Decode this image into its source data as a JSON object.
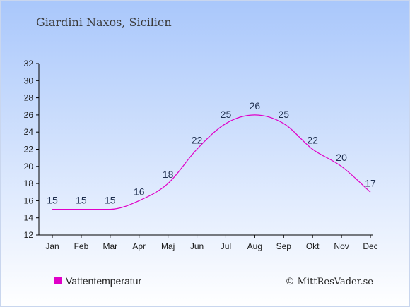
{
  "chart_data": {
    "type": "line",
    "title": "Giardini Naxos, Sicilien",
    "categories": [
      "Jan",
      "Feb",
      "Mar",
      "Apr",
      "Maj",
      "Jun",
      "Jul",
      "Aug",
      "Sep",
      "Okt",
      "Nov",
      "Dec"
    ],
    "series": [
      {
        "name": "Vattentemperatur",
        "values": [
          15,
          15,
          15,
          16,
          18,
          22,
          25,
          26,
          25,
          22,
          20,
          17
        ],
        "color": "#e000c8"
      }
    ],
    "ylim": [
      12,
      32
    ],
    "yticks": [
      12,
      14,
      16,
      18,
      20,
      22,
      24,
      26,
      28,
      30,
      32
    ],
    "grid": false,
    "legend": "bottom-left"
  },
  "credit": "© MittResVader.se",
  "colors": {
    "sky_top": "#a9c7fb",
    "sky_bottom": "#ffffff",
    "axis": "#000000"
  }
}
